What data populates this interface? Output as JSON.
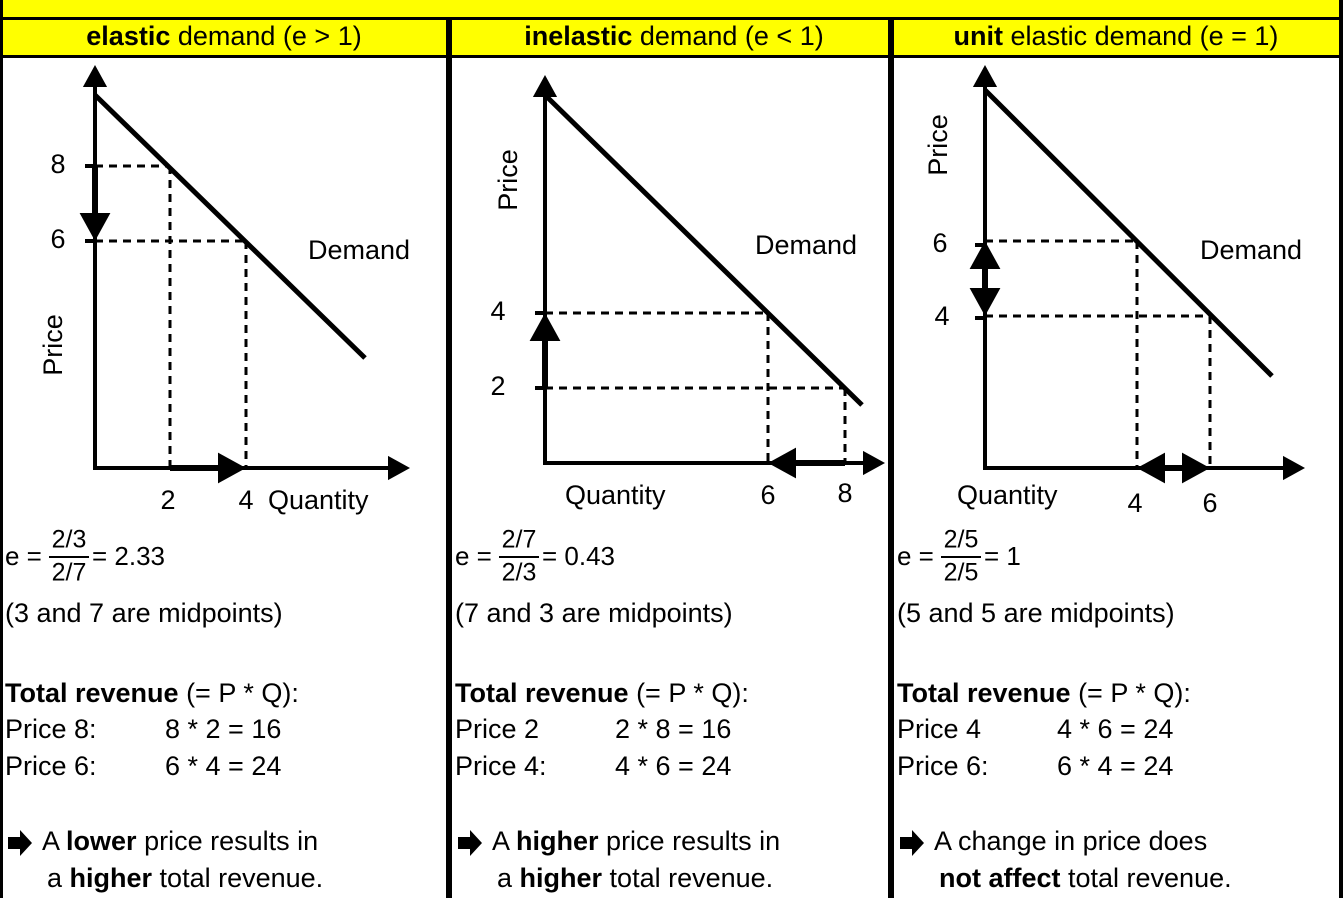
{
  "panels": [
    {
      "header": {
        "bold": "elastic",
        "rest": " demand (e > 1)"
      },
      "graph": {
        "y_label": "Price",
        "x_label": "Quantity",
        "curve_label": "Demand",
        "y_ticks": [
          "8",
          "6"
        ],
        "x_ticks": [
          "2",
          "4"
        ]
      },
      "formula": {
        "lhs": "e =",
        "num": "2/3",
        "den": "2/7",
        "rhs": "= 2.33"
      },
      "note": "(3 and 7 are midpoints)",
      "revenue": {
        "title_bold": "Total revenue",
        "title_rest": " (= P * Q):",
        "rows": [
          [
            "Price 8:",
            "8 * 2 = 16"
          ],
          [
            "Price 6:",
            "6 * 4 = 24"
          ]
        ]
      },
      "conclusion": [
        [
          {
            "t": "A ",
            "b": false
          },
          {
            "t": "lower",
            "b": true
          },
          {
            "t": " price results in",
            "b": false
          }
        ],
        [
          {
            "t": "a ",
            "b": false
          },
          {
            "t": "higher",
            "b": true
          },
          {
            "t": " total revenue.",
            "b": false
          }
        ]
      ]
    },
    {
      "header": {
        "bold": "inelastic",
        "rest": " demand (e < 1)"
      },
      "graph": {
        "y_label": "Price",
        "x_label": "Quantity",
        "curve_label": "Demand",
        "y_ticks": [
          "4",
          "2"
        ],
        "x_ticks": [
          "6",
          "8"
        ]
      },
      "formula": {
        "lhs": "e =",
        "num": "2/7",
        "den": "2/3",
        "rhs": "= 0.43"
      },
      "note": "(7 and 3 are midpoints)",
      "revenue": {
        "title_bold": "Total revenue",
        "title_rest": " (= P * Q):",
        "rows": [
          [
            "Price 2",
            "2 * 8 = 16"
          ],
          [
            "Price 4:",
            "4 * 6 = 24"
          ]
        ]
      },
      "conclusion": [
        [
          {
            "t": "A ",
            "b": false
          },
          {
            "t": "higher",
            "b": true
          },
          {
            "t": " price results in",
            "b": false
          }
        ],
        [
          {
            "t": "a ",
            "b": false
          },
          {
            "t": "higher",
            "b": true
          },
          {
            "t": " total revenue.",
            "b": false
          }
        ]
      ]
    },
    {
      "header": {
        "bold": "unit",
        "rest": " elastic demand (e = 1)"
      },
      "graph": {
        "y_label": "Price",
        "x_label": "Quantity",
        "curve_label": "Demand",
        "y_ticks": [
          "6",
          "4"
        ],
        "x_ticks": [
          "4",
          "6"
        ]
      },
      "formula": {
        "lhs": "e =",
        "num": "2/5",
        "den": "2/5",
        "rhs": "= 1"
      },
      "note": "(5 and 5 are midpoints)",
      "revenue": {
        "title_bold": "Total revenue",
        "title_rest": " (= P * Q):",
        "rows": [
          [
            "Price 4",
            "4 * 6 = 24"
          ],
          [
            "Price 6:",
            "6 * 4 = 24"
          ]
        ]
      },
      "conclusion": [
        [
          {
            "t": "A change in price does",
            "b": false
          }
        ],
        [
          {
            "t": "not affect",
            "b": true
          },
          {
            "t": " total revenue.",
            "b": false
          }
        ]
      ]
    }
  ]
}
